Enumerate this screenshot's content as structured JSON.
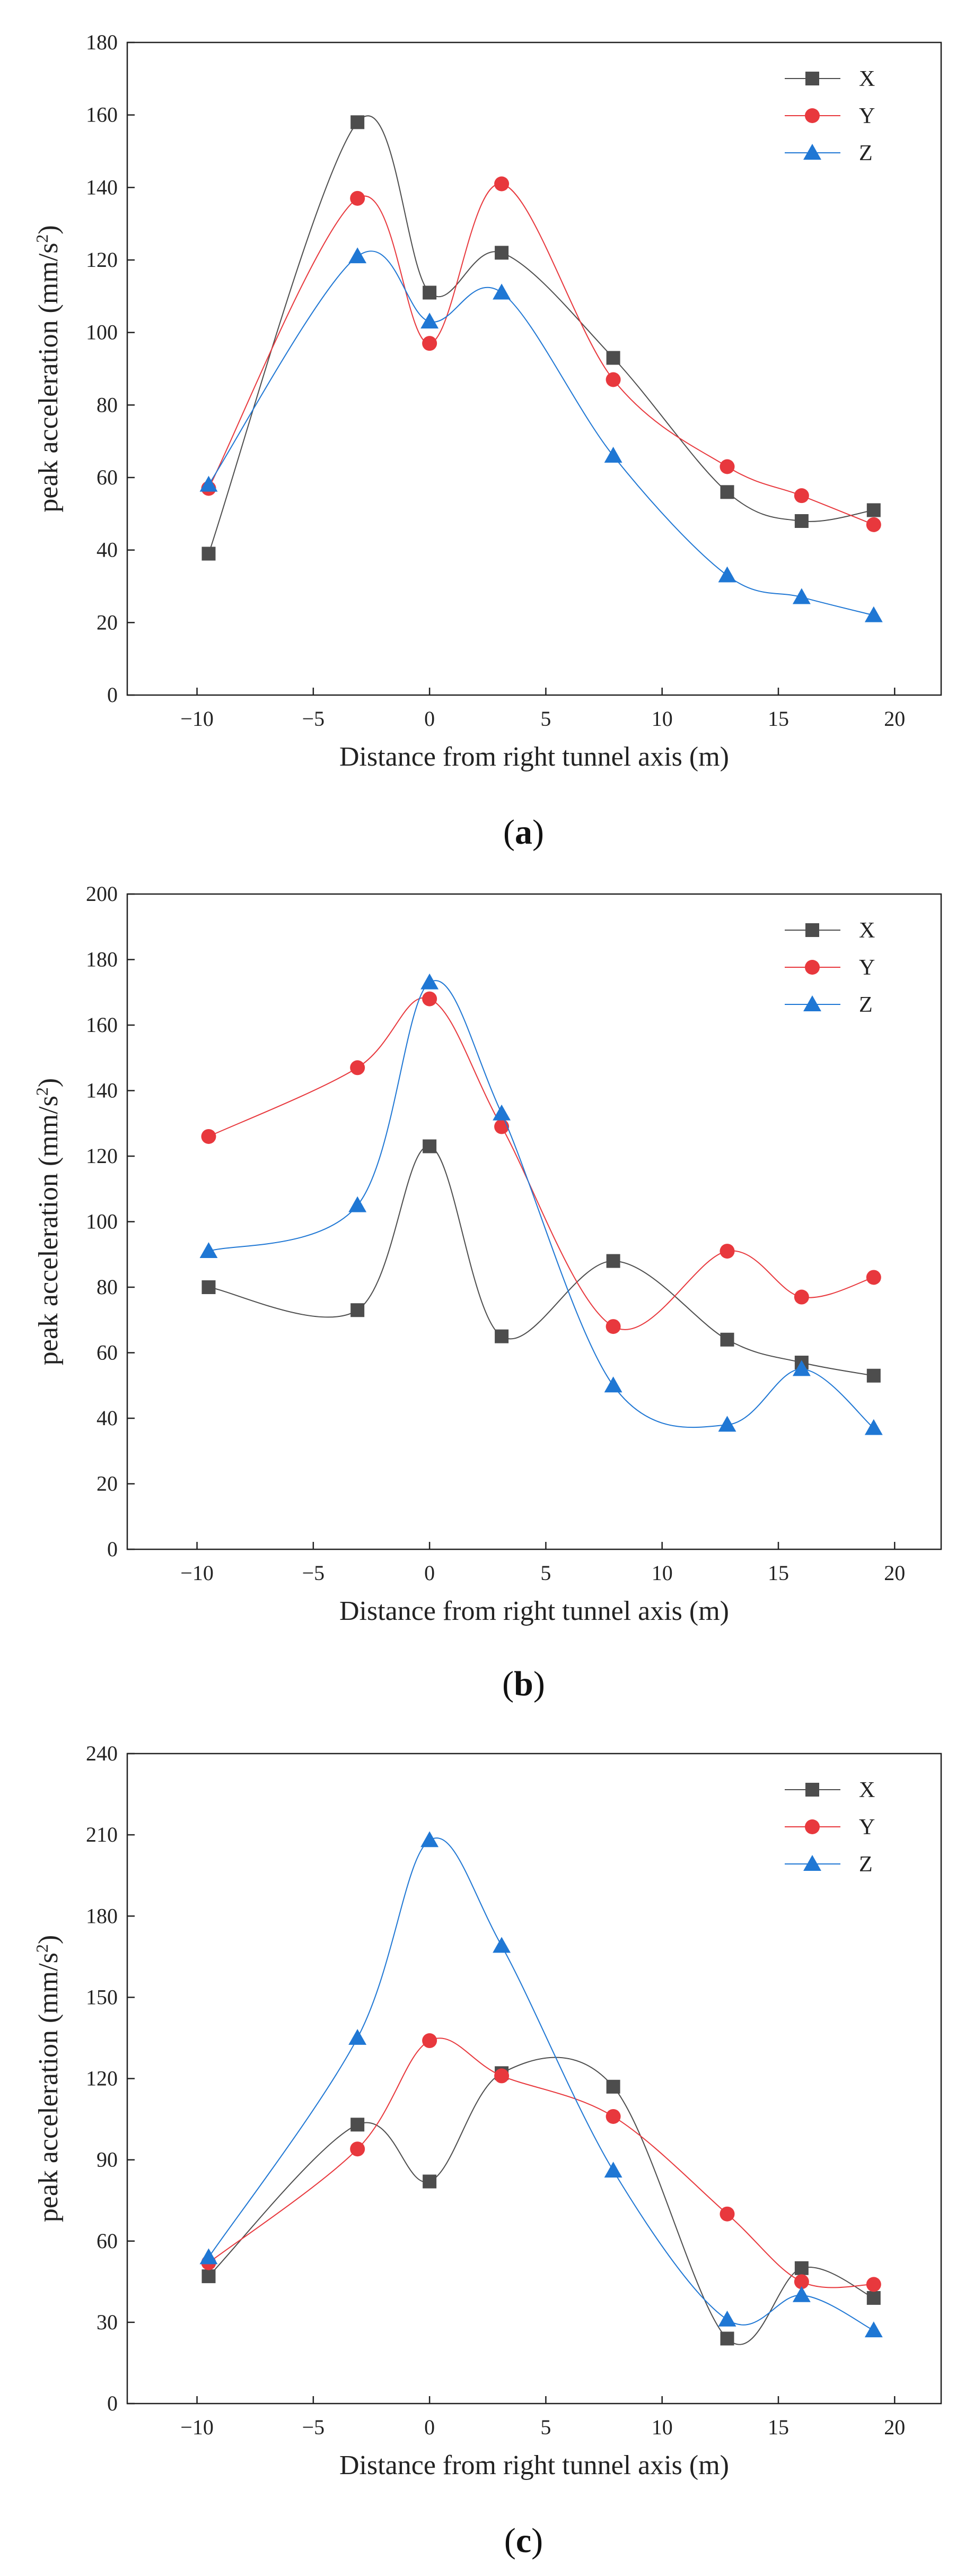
{
  "chart_data": [
    {
      "type": "line",
      "panel": "a",
      "caption_letter": "a",
      "xlabel": "Distance from right tunnel axis (m)",
      "ylabel": "peak acceleration (mm/s²)",
      "xlim": [
        -13,
        22
      ],
      "ylim": [
        0,
        180
      ],
      "xticks": [
        -10,
        -5,
        0,
        5,
        10,
        15,
        20
      ],
      "yticks": [
        0,
        20,
        40,
        60,
        80,
        100,
        120,
        140,
        160,
        180
      ],
      "legend_position": "top-right",
      "x": [
        -9.5,
        -3.1,
        0,
        3.1,
        7.9,
        12.8,
        16,
        19.1
      ],
      "series": [
        {
          "name": "X",
          "color": "#4d4d4d",
          "marker": "square",
          "values": [
            39,
            158,
            111,
            122,
            93,
            56,
            48,
            51
          ]
        },
        {
          "name": "Y",
          "color": "#e8383d",
          "marker": "circle",
          "values": [
            57,
            137,
            97,
            141,
            87,
            63,
            55,
            47
          ]
        },
        {
          "name": "Z",
          "color": "#1f77d4",
          "marker": "triangle",
          "values": [
            58,
            121,
            103,
            111,
            66,
            33,
            27,
            22
          ]
        }
      ]
    },
    {
      "type": "line",
      "panel": "b",
      "caption_letter": "b",
      "xlabel": "Distance from right tunnel axis (m)",
      "ylabel": "peak acceleration (mm/s²)",
      "xlim": [
        -13,
        22
      ],
      "ylim": [
        0,
        200
      ],
      "xticks": [
        -10,
        -5,
        0,
        5,
        10,
        15,
        20
      ],
      "yticks": [
        0,
        20,
        40,
        60,
        80,
        100,
        120,
        140,
        160,
        180,
        200
      ],
      "legend_position": "top-right",
      "x": [
        -9.5,
        -3.1,
        0,
        3.1,
        7.9,
        12.8,
        16,
        19.1
      ],
      "series": [
        {
          "name": "X",
          "color": "#4d4d4d",
          "marker": "square",
          "values": [
            80,
            73,
            123,
            65,
            88,
            64,
            57,
            53
          ]
        },
        {
          "name": "Y",
          "color": "#e8383d",
          "marker": "circle",
          "values": [
            126,
            147,
            168,
            129,
            68,
            91,
            77,
            83
          ]
        },
        {
          "name": "Z",
          "color": "#1f77d4",
          "marker": "triangle",
          "values": [
            91,
            105,
            173,
            133,
            50,
            38,
            55,
            37
          ]
        }
      ]
    },
    {
      "type": "line",
      "panel": "c",
      "caption_letter": "c",
      "xlabel": "Distance from right tunnel axis (m)",
      "ylabel": "peak acceleration (mm/s²)",
      "xlim": [
        -13,
        22
      ],
      "ylim": [
        0,
        240
      ],
      "xticks": [
        -10,
        -5,
        0,
        5,
        10,
        15,
        20
      ],
      "yticks": [
        0,
        30,
        60,
        90,
        120,
        150,
        180,
        210,
        240
      ],
      "legend_position": "top-right",
      "x": [
        -9.5,
        -3.1,
        0,
        3.1,
        7.9,
        12.8,
        16,
        19.1
      ],
      "series": [
        {
          "name": "X",
          "color": "#4d4d4d",
          "marker": "square",
          "values": [
            47,
            103,
            82,
            122,
            117,
            24,
            50,
            39
          ]
        },
        {
          "name": "Y",
          "color": "#e8383d",
          "marker": "circle",
          "values": [
            52,
            94,
            134,
            121,
            106,
            70,
            45,
            44
          ]
        },
        {
          "name": "Z",
          "color": "#1f77d4",
          "marker": "triangle",
          "values": [
            54,
            135,
            208,
            169,
            86,
            31,
            40,
            27
          ]
        }
      ]
    }
  ]
}
